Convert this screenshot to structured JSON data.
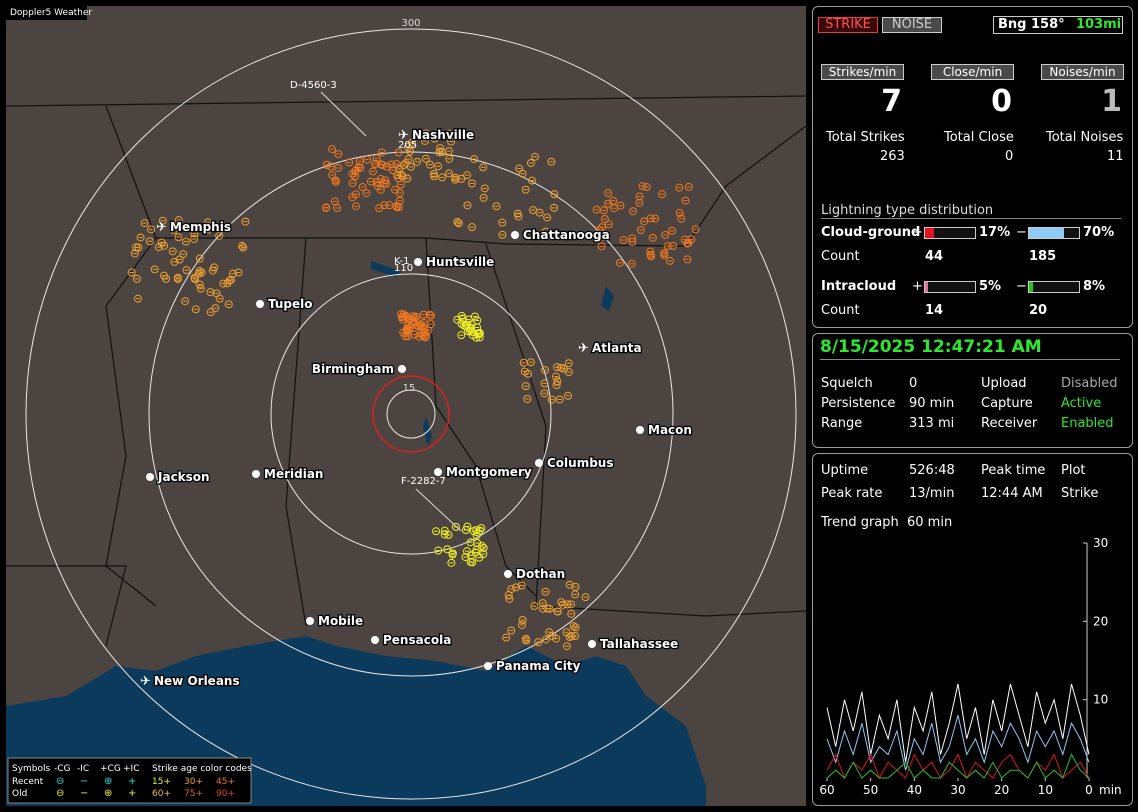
{
  "map": {
    "title": "Doppler5 Weather",
    "ring_labels": [
      "300",
      "15"
    ],
    "marker_labels": [
      "D-4560-3",
      "K-1",
      "110",
      "205",
      "F-2282-7"
    ],
    "cities": [
      "Nashville",
      "Memphis",
      "Chattanooga",
      "Huntsville",
      "Tupelo",
      "Atlanta",
      "Birmingham",
      "Macon",
      "Jackson",
      "Meridian",
      "Montgomery",
      "Columbus",
      "Dothan",
      "Mobile",
      "Pensacola",
      "Tallahassee",
      "Panama City",
      "New Orleans"
    ],
    "legend": {
      "symbols": "Symbols",
      "types": [
        "-CG",
        "-IC",
        "+CG",
        "+IC"
      ],
      "age_title": "Strike age color codes",
      "rows": [
        "Recent",
        "Old"
      ],
      "ages": [
        [
          "15+",
          "30+",
          "45+"
        ],
        [
          "60+",
          "75+",
          "90+"
        ]
      ]
    }
  },
  "panel": {
    "buttons": [
      "STRIKE",
      "NOISE"
    ],
    "bearing": "Bng 158°",
    "distance": "103mi",
    "rates": [
      {
        "label": "Strikes/min",
        "value": 7
      },
      {
        "label": "Close/min",
        "value": 0
      },
      {
        "label": "Noises/min",
        "value": 1
      }
    ],
    "totals": [
      {
        "label": "Total Strikes",
        "value": 263
      },
      {
        "label": "Total Close",
        "value": 0
      },
      {
        "label": "Total Noises",
        "value": 11
      }
    ],
    "distribution": {
      "title": "Lightning type distribution",
      "count_label": "Count",
      "signs": [
        "+",
        "−"
      ],
      "rows": [
        {
          "name": "Cloud-ground",
          "values": [
            17,
            70
          ],
          "value_labels": [
            "17%",
            "70%"
          ],
          "counts": [
            44,
            185
          ],
          "colors": [
            "#e0141e",
            "#8ecbf5"
          ]
        },
        {
          "name": "Intracloud",
          "values": [
            5,
            8
          ],
          "value_labels": [
            "5%",
            "8%"
          ],
          "counts": [
            14,
            20
          ],
          "colors": [
            "#e070a0",
            "#22c422"
          ]
        }
      ]
    }
  },
  "status": {
    "datetime": "8/15/2025 12:47:21 AM",
    "left": [
      [
        "Squelch",
        "0"
      ],
      [
        "Persistence",
        "90 min"
      ],
      [
        "Range",
        "313 mi"
      ]
    ],
    "right": [
      [
        "Upload",
        "Disabled"
      ],
      [
        "Capture",
        "Active"
      ],
      [
        "Receiver",
        "Enabled"
      ]
    ]
  },
  "info": {
    "rows": [
      [
        "Uptime",
        "526:48",
        "Peak time",
        "Plot"
      ],
      [
        "Peak rate",
        "13/min",
        "12:44 AM",
        "Strike"
      ]
    ],
    "trend_label": "Trend graph",
    "trend_value": "60 min"
  },
  "chart_data": {
    "type": "line",
    "x": [
      60,
      58,
      56,
      54,
      52,
      50,
      48,
      46,
      44,
      42,
      40,
      38,
      36,
      34,
      32,
      30,
      28,
      26,
      24,
      22,
      20,
      18,
      16,
      14,
      12,
      10,
      8,
      6,
      4,
      2,
      0
    ],
    "xlim": [
      60,
      0
    ],
    "xticks": [
      60,
      50,
      40,
      30,
      20,
      10,
      0
    ],
    "x_unit": "min",
    "ylim": [
      0,
      30
    ],
    "yticks": [
      10,
      20,
      30
    ],
    "series": [
      {
        "name": "Strike",
        "color": "#ffffff",
        "values": [
          9,
          4,
          10,
          6,
          11,
          3,
          8,
          5,
          10,
          2,
          9,
          6,
          11,
          3,
          7,
          12,
          5,
          9,
          3,
          10,
          6,
          12,
          8,
          4,
          11,
          7,
          10,
          5,
          12,
          8,
          3
        ]
      },
      {
        "name": "CG-",
        "color": "#8ecbf5",
        "values": [
          5,
          2,
          6,
          3,
          7,
          2,
          4,
          3,
          6,
          1,
          5,
          3,
          7,
          2,
          4,
          8,
          3,
          5,
          2,
          6,
          4,
          7,
          5,
          2,
          6,
          4,
          6,
          3,
          7,
          5,
          2
        ]
      },
      {
        "name": "CG+",
        "color": "#e0141e",
        "values": [
          1,
          3,
          0,
          2,
          1,
          3,
          0,
          2,
          1,
          0,
          3,
          1,
          2,
          0,
          1,
          3,
          0,
          2,
          1,
          0,
          2,
          3,
          1,
          0,
          2,
          1,
          3,
          0,
          1,
          2,
          0
        ]
      },
      {
        "name": "IC",
        "color": "#22c422",
        "values": [
          0,
          1,
          0,
          2,
          0,
          1,
          0,
          0,
          1,
          2,
          0,
          1,
          0,
          0,
          2,
          1,
          0,
          1,
          0,
          2,
          0,
          1,
          1,
          0,
          2,
          0,
          1,
          0,
          3,
          1,
          0
        ]
      }
    ]
  }
}
